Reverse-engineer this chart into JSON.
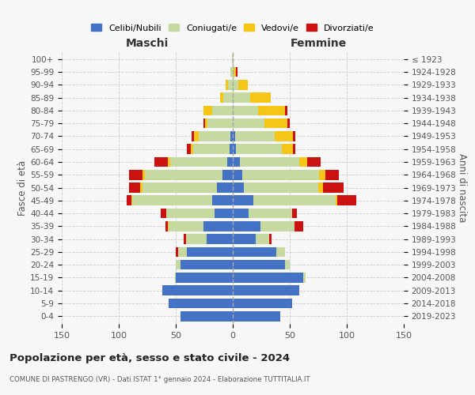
{
  "age_groups": [
    "0-4",
    "5-9",
    "10-14",
    "15-19",
    "20-24",
    "25-29",
    "30-34",
    "35-39",
    "40-44",
    "45-49",
    "50-54",
    "55-59",
    "60-64",
    "65-69",
    "70-74",
    "75-79",
    "80-84",
    "85-89",
    "90-94",
    "95-99",
    "100+"
  ],
  "birth_years": [
    "2019-2023",
    "2014-2018",
    "2009-2013",
    "2004-2008",
    "1999-2003",
    "1994-1998",
    "1989-1993",
    "1984-1988",
    "1979-1983",
    "1974-1978",
    "1969-1973",
    "1964-1968",
    "1959-1963",
    "1954-1958",
    "1949-1953",
    "1944-1948",
    "1939-1943",
    "1934-1938",
    "1929-1933",
    "1924-1928",
    "≤ 1923"
  ],
  "male_celibi": [
    46,
    56,
    62,
    50,
    46,
    40,
    23,
    26,
    16,
    18,
    14,
    9,
    5,
    3,
    2,
    0,
    0,
    0,
    0,
    0,
    0
  ],
  "male_coniugati": [
    0,
    0,
    0,
    1,
    4,
    8,
    18,
    30,
    42,
    70,
    65,
    68,
    50,
    32,
    28,
    22,
    18,
    8,
    4,
    2,
    1
  ],
  "male_vedovi": [
    0,
    0,
    0,
    0,
    0,
    0,
    0,
    1,
    0,
    1,
    2,
    2,
    2,
    2,
    4,
    2,
    8,
    3,
    2,
    0,
    0
  ],
  "male_divorziati": [
    0,
    0,
    0,
    0,
    0,
    2,
    2,
    2,
    5,
    4,
    10,
    12,
    12,
    3,
    2,
    2,
    0,
    0,
    0,
    0,
    0
  ],
  "female_nubili": [
    42,
    52,
    58,
    62,
    46,
    38,
    20,
    24,
    14,
    18,
    10,
    8,
    6,
    3,
    2,
    0,
    0,
    0,
    0,
    0,
    0
  ],
  "female_coniugate": [
    0,
    0,
    0,
    2,
    4,
    8,
    12,
    30,
    38,
    72,
    65,
    68,
    52,
    40,
    35,
    28,
    22,
    15,
    5,
    1,
    1
  ],
  "female_vedove": [
    0,
    0,
    0,
    0,
    0,
    0,
    0,
    0,
    0,
    2,
    4,
    5,
    7,
    10,
    16,
    20,
    24,
    18,
    8,
    2,
    0
  ],
  "female_divorziate": [
    0,
    0,
    0,
    0,
    0,
    0,
    2,
    8,
    4,
    16,
    18,
    12,
    12,
    2,
    2,
    2,
    2,
    0,
    0,
    1,
    0
  ],
  "color_celibi": "#4472C4",
  "color_coniugati": "#c5d9a0",
  "color_vedovi": "#f5c518",
  "color_divorziati": "#cc1111",
  "xlim": 150,
  "title1": "Popolazione per età, sesso e stato civile - 2024",
  "title2": "COMUNE DI PASTRENGO (VR) - Dati ISTAT 1° gennaio 2024 - Elaborazione TUTTITALIA.IT",
  "legend_labels": [
    "Celibi/Nubili",
    "Coniugati/e",
    "Vedovi/e",
    "Divorziati/e"
  ],
  "header_left": "Maschi",
  "header_right": "Femmine",
  "ylabel_left": "Fasce di età",
  "ylabel_right": "Anni di nascita",
  "bg_color": "#f7f7f7",
  "grid_color": "#cccccc"
}
